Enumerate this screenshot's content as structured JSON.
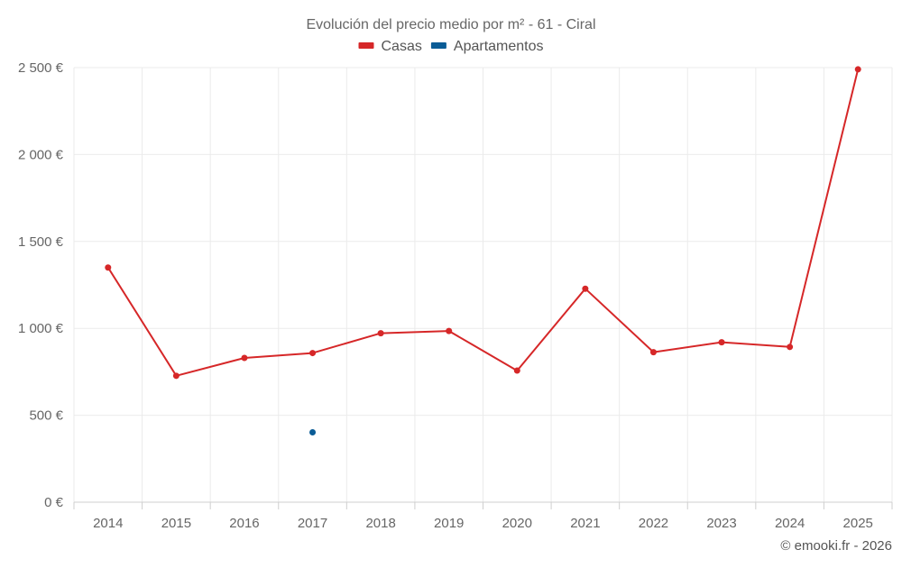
{
  "chart_data": {
    "type": "line",
    "title": "Evolución del precio medio por m² - 61 - Ciral",
    "categories": [
      "2014",
      "2015",
      "2016",
      "2017",
      "2018",
      "2019",
      "2020",
      "2021",
      "2022",
      "2023",
      "2024",
      "2025"
    ],
    "series": [
      {
        "name": "Casas",
        "color": "#d62728",
        "values": [
          1350,
          727,
          830,
          858,
          972,
          985,
          757,
          1228,
          863,
          920,
          893,
          2490
        ]
      },
      {
        "name": "Apartamentos",
        "color": "#0a5c96",
        "values": [
          null,
          null,
          null,
          402,
          null,
          null,
          null,
          null,
          null,
          null,
          null,
          null
        ]
      }
    ],
    "ylim": [
      0,
      2500
    ],
    "yticks": [
      0,
      500,
      1000,
      1500,
      2000,
      2500
    ],
    "ytick_labels": [
      "0 €",
      "500 €",
      "1 000 €",
      "1 500 €",
      "2 000 €",
      "2 500 €"
    ],
    "xlabel": "",
    "ylabel": "",
    "grid": true,
    "legend_position": "top-center"
  },
  "credit": "© emooki.fr - 2026"
}
